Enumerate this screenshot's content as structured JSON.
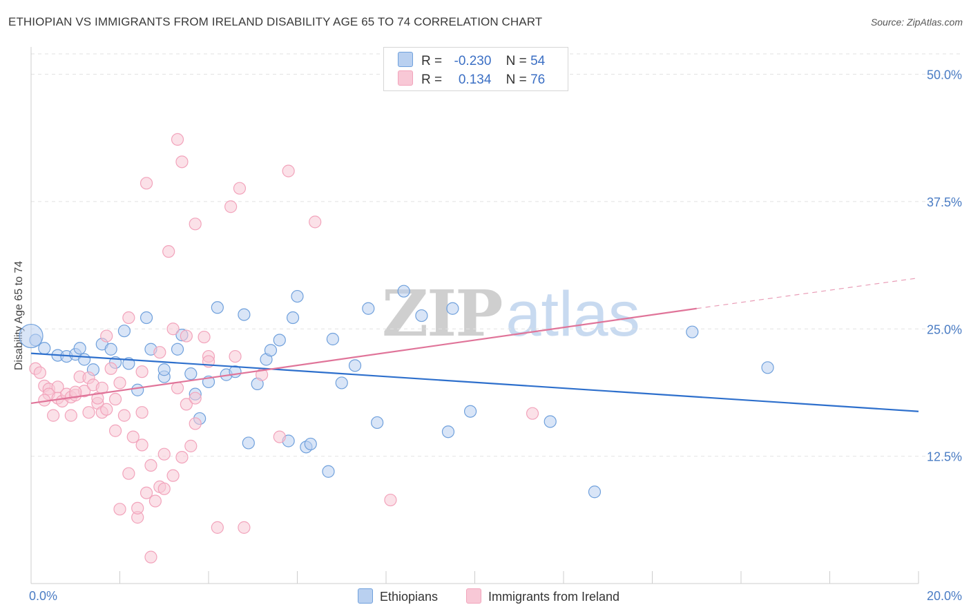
{
  "header": {
    "title": "ETHIOPIAN VS IMMIGRANTS FROM IRELAND DISABILITY AGE 65 TO 74 CORRELATION CHART",
    "source": "Source: ZipAtlas.com"
  },
  "watermark": {
    "zip": "ZIP",
    "atlas": "atlas"
  },
  "legend_top": {
    "rows": [
      {
        "r_label": "R =",
        "r_value": "-0.230",
        "n_label": "N =",
        "n_value": "54"
      },
      {
        "r_label": "R =",
        "r_value": "0.134",
        "n_label": "N =",
        "n_value": "76"
      }
    ]
  },
  "chart_data": {
    "type": "scatter",
    "xlabel": "",
    "ylabel": "Disability Age 65 to 74",
    "xlim": [
      0,
      20
    ],
    "ylim": [
      0,
      50
    ],
    "x_tick_labels": [
      "0.0%",
      "20.0%"
    ],
    "y_ticks": [
      12.5,
      25.0,
      37.5,
      50.0
    ],
    "y_tick_labels": [
      "12.5%",
      "25.0%",
      "37.5%",
      "50.0%"
    ],
    "grid": "horizontal dashed",
    "legend": "bottom",
    "series": [
      {
        "name": "Ethiopians",
        "color": "#6fa0dc",
        "fill": "#b9d0f0",
        "line_color": "#2d6fcc",
        "trend": {
          "x": [
            0,
            20
          ],
          "y": [
            22.6,
            16.9
          ]
        },
        "points": [
          [
            0.1,
            23.9
          ],
          [
            0.3,
            23.1
          ],
          [
            0.6,
            22.4
          ],
          [
            0.8,
            22.3
          ],
          [
            1.0,
            22.5
          ],
          [
            1.1,
            23.1
          ],
          [
            1.2,
            22.0
          ],
          [
            1.4,
            21.0
          ],
          [
            1.6,
            23.5
          ],
          [
            1.8,
            23.0
          ],
          [
            1.9,
            21.7
          ],
          [
            2.1,
            24.8
          ],
          [
            2.2,
            21.6
          ],
          [
            2.4,
            19.0
          ],
          [
            2.6,
            26.1
          ],
          [
            2.7,
            23.0
          ],
          [
            3.0,
            20.3
          ],
          [
            3.0,
            21.0
          ],
          [
            3.3,
            23.0
          ],
          [
            3.4,
            24.4
          ],
          [
            3.6,
            20.6
          ],
          [
            3.7,
            18.6
          ],
          [
            3.8,
            16.2
          ],
          [
            4.0,
            19.8
          ],
          [
            4.2,
            27.1
          ],
          [
            4.4,
            20.5
          ],
          [
            4.6,
            20.8
          ],
          [
            4.8,
            26.4
          ],
          [
            4.9,
            13.8
          ],
          [
            5.1,
            19.6
          ],
          [
            5.3,
            22.0
          ],
          [
            5.4,
            22.9
          ],
          [
            5.6,
            23.9
          ],
          [
            5.8,
            14.0
          ],
          [
            5.9,
            26.1
          ],
          [
            6.0,
            28.2
          ],
          [
            6.2,
            13.4
          ],
          [
            6.3,
            13.7
          ],
          [
            6.7,
            11.0
          ],
          [
            6.8,
            24.0
          ],
          [
            7.0,
            19.7
          ],
          [
            7.3,
            21.4
          ],
          [
            7.6,
            27.0
          ],
          [
            7.8,
            15.8
          ],
          [
            8.4,
            28.7
          ],
          [
            8.8,
            26.3
          ],
          [
            9.4,
            14.9
          ],
          [
            9.5,
            27.0
          ],
          [
            9.9,
            16.9
          ],
          [
            11.7,
            15.9
          ],
          [
            12.7,
            9.0
          ],
          [
            14.9,
            24.7
          ],
          [
            16.6,
            21.2
          ],
          [
            0.0,
            24.3
          ]
        ]
      },
      {
        "name": "Immigrants from Ireland",
        "color": "#f2a3bb",
        "fill": "#f8c8d6",
        "line_color": "#e07499",
        "trend": {
          "x": [
            0,
            15
          ],
          "y": [
            17.7,
            27.0
          ]
        },
        "trend_extension": {
          "x": [
            15,
            20
          ],
          "y": [
            27.0,
            30.0
          ]
        },
        "points": [
          [
            0.1,
            21.1
          ],
          [
            0.2,
            20.7
          ],
          [
            0.3,
            19.4
          ],
          [
            0.4,
            19.1
          ],
          [
            0.4,
            18.6
          ],
          [
            0.5,
            16.5
          ],
          [
            0.6,
            19.3
          ],
          [
            0.6,
            18.2
          ],
          [
            0.7,
            17.9
          ],
          [
            0.8,
            18.6
          ],
          [
            0.9,
            16.5
          ],
          [
            0.9,
            18.3
          ],
          [
            1.0,
            18.5
          ],
          [
            1.1,
            20.3
          ],
          [
            1.2,
            18.9
          ],
          [
            1.3,
            20.2
          ],
          [
            1.3,
            16.8
          ],
          [
            1.4,
            19.5
          ],
          [
            1.5,
            17.7
          ],
          [
            1.5,
            18.2
          ],
          [
            1.6,
            16.8
          ],
          [
            1.6,
            19.2
          ],
          [
            1.7,
            17.1
          ],
          [
            1.7,
            24.3
          ],
          [
            1.8,
            21.1
          ],
          [
            1.9,
            15.0
          ],
          [
            1.9,
            18.1
          ],
          [
            2.0,
            19.7
          ],
          [
            2.0,
            7.3
          ],
          [
            2.1,
            16.5
          ],
          [
            2.2,
            10.8
          ],
          [
            2.2,
            26.1
          ],
          [
            2.3,
            14.4
          ],
          [
            2.4,
            6.5
          ],
          [
            2.4,
            7.4
          ],
          [
            2.5,
            16.8
          ],
          [
            2.5,
            13.6
          ],
          [
            2.5,
            20.8
          ],
          [
            2.6,
            8.9
          ],
          [
            2.6,
            39.3
          ],
          [
            2.7,
            2.6
          ],
          [
            2.7,
            11.6
          ],
          [
            2.8,
            8.1
          ],
          [
            2.9,
            9.5
          ],
          [
            2.9,
            22.7
          ],
          [
            3.0,
            9.3
          ],
          [
            3.0,
            12.7
          ],
          [
            3.1,
            32.6
          ],
          [
            3.2,
            10.6
          ],
          [
            3.2,
            25.0
          ],
          [
            3.3,
            19.2
          ],
          [
            3.3,
            43.6
          ],
          [
            3.4,
            41.4
          ],
          [
            3.4,
            12.4
          ],
          [
            3.5,
            24.3
          ],
          [
            3.5,
            17.6
          ],
          [
            3.6,
            13.5
          ],
          [
            3.7,
            35.3
          ],
          [
            3.7,
            15.7
          ],
          [
            3.7,
            18.2
          ],
          [
            3.9,
            24.2
          ],
          [
            4.0,
            22.3
          ],
          [
            4.0,
            21.8
          ],
          [
            4.2,
            5.5
          ],
          [
            4.5,
            37.0
          ],
          [
            4.6,
            22.3
          ],
          [
            4.7,
            38.8
          ],
          [
            4.8,
            5.5
          ],
          [
            5.2,
            20.5
          ],
          [
            5.6,
            14.4
          ],
          [
            5.8,
            40.5
          ],
          [
            6.4,
            35.5
          ],
          [
            8.1,
            8.2
          ],
          [
            11.3,
            16.7
          ],
          [
            1.0,
            18.8
          ],
          [
            0.3,
            18.0
          ]
        ]
      }
    ]
  },
  "legend_bottom": {
    "items": [
      {
        "label": "Ethiopians",
        "color": "#b9d0f0",
        "border": "#6fa0dc"
      },
      {
        "label": "Immigrants from Ireland",
        "color": "#f8c8d6",
        "border": "#f2a3bb"
      }
    ]
  }
}
